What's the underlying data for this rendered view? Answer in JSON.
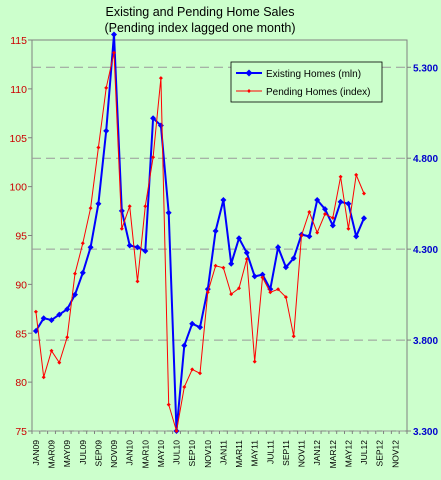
{
  "chart_data": {
    "type": "line",
    "title": "Existing and Pending Home Sales",
    "subtitle": "(Pending index lagged one month)",
    "x": [
      "JAN09",
      "FEB09",
      "MAR09",
      "APR09",
      "MAY09",
      "JUN09",
      "JUL09",
      "AUG09",
      "SEP09",
      "OCT09",
      "NOV09",
      "DEC09",
      "JAN10",
      "FEB10",
      "MAR10",
      "APR10",
      "MAY10",
      "JUN10",
      "JUL10",
      "AUG10",
      "SEP10",
      "OCT10",
      "NOV10",
      "DEC10",
      "JAN11",
      "FEB11",
      "MAR11",
      "APR11",
      "MAY11",
      "JUN11",
      "JUL11",
      "AUG11",
      "SEP11",
      "OCT11",
      "NOV11",
      "DEC11",
      "JAN12",
      "FEB12",
      "MAR12",
      "APR12",
      "MAY12",
      "JUN12",
      "JUL12",
      "AUG12",
      "SEP12",
      "OCT12",
      "NOV12",
      "DEC12"
    ],
    "x_tick_labels": [
      "JAN09",
      "MAR09",
      "MAY09",
      "JUL09",
      "SEP09",
      "NOV09",
      "JAN10",
      "MAR10",
      "MAY10",
      "JUL10",
      "SEP10",
      "NOV10",
      "JAN11",
      "MAR11",
      "MAY11",
      "JUL11",
      "SEP11",
      "NOV11",
      "JAN12",
      "MAR12",
      "MAY12",
      "JUL12",
      "SEP12",
      "NOV12"
    ],
    "left_axis": {
      "ylim": [
        75,
        115
      ],
      "ticks": [
        "75",
        "80",
        "85",
        "90",
        "95",
        "100",
        "105",
        "110",
        "115"
      ]
    },
    "right_axis": {
      "ylim": [
        3.3,
        5.45
      ],
      "ticks": [
        "3.300",
        "3.800",
        "4.300",
        "4.800",
        "5.300"
      ]
    },
    "grid": "horizontal dashed",
    "legend_position": "top-right",
    "series": [
      {
        "name": "Existing Homes (mln)",
        "axis": "right",
        "color": "#0000ff",
        "values": [
          3.85,
          3.92,
          3.91,
          3.94,
          3.97,
          4.05,
          4.17,
          4.31,
          4.55,
          4.95,
          5.48,
          4.51,
          4.32,
          4.31,
          4.29,
          5.02,
          4.98,
          4.5,
          3.3,
          3.77,
          3.89,
          3.87,
          4.08,
          4.4,
          4.57,
          4.22,
          4.36,
          4.28,
          4.15,
          4.16,
          4.08,
          4.31,
          4.2,
          4.25,
          4.38,
          4.37,
          4.57,
          4.52,
          4.43,
          4.56,
          4.55,
          4.37,
          4.47,
          null,
          null,
          null,
          null,
          null
        ]
      },
      {
        "name": "Pending Homes (index)",
        "axis": "left",
        "color": "#ff0000",
        "values": [
          87.2,
          80.5,
          83.2,
          82.0,
          84.6,
          91.1,
          94.2,
          97.8,
          104.0,
          110.1,
          113.7,
          95.7,
          98.0,
          90.3,
          98.0,
          103.0,
          111.1,
          77.7,
          75.0,
          79.5,
          81.3,
          80.9,
          89.2,
          91.9,
          91.7,
          89.0,
          89.6,
          92.6,
          82.1,
          90.7,
          89.2,
          89.5,
          88.7,
          84.7,
          95.0,
          97.4,
          95.3,
          97.2,
          96.8,
          101.0,
          95.7,
          101.2,
          99.3,
          null,
          null,
          null,
          null,
          null
        ]
      }
    ]
  }
}
